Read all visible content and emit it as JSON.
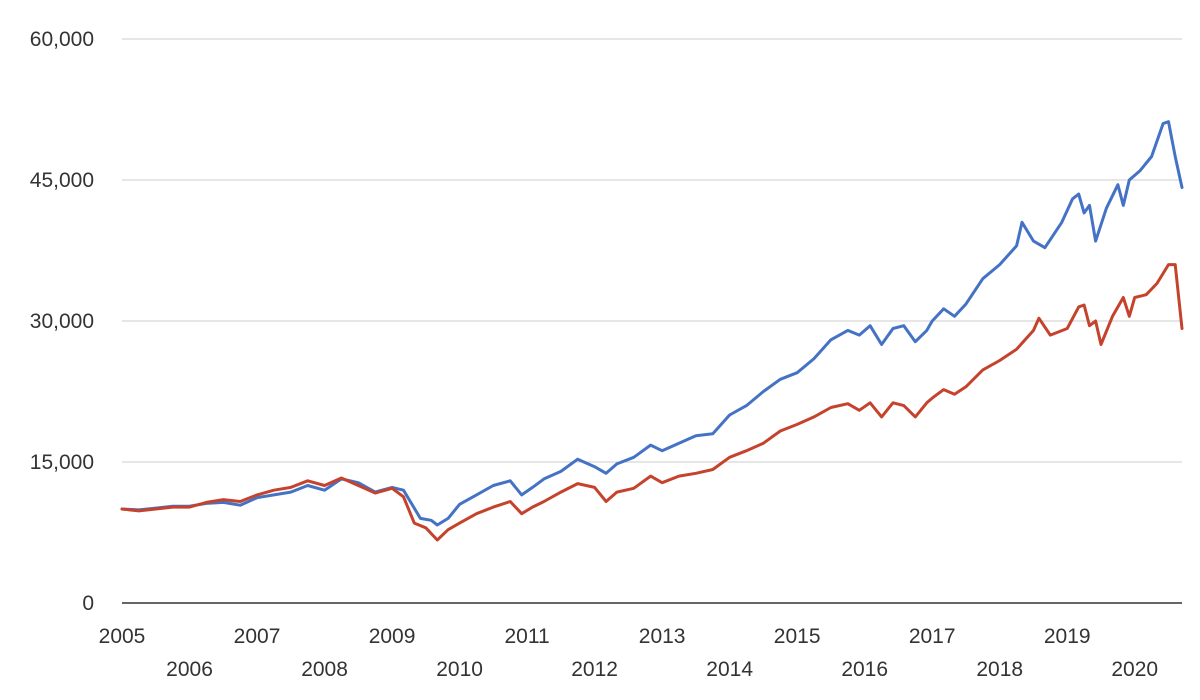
{
  "chart_data": {
    "type": "line",
    "title": "",
    "xlabel": "",
    "ylabel": "",
    "ylim": [
      0,
      60000
    ],
    "yticks": [
      0,
      15000,
      30000,
      45000,
      60000
    ],
    "ytick_labels": [
      "0",
      "15,000",
      "30,000",
      "45,000",
      "60,000"
    ],
    "xlim": [
      2005.0,
      2020.7
    ],
    "xticks": [
      2005,
      2006,
      2007,
      2008,
      2009,
      2010,
      2011,
      2012,
      2013,
      2014,
      2015,
      2016,
      2017,
      2018,
      2019,
      2020
    ],
    "xtick_labels": [
      "2005",
      "2006",
      "2007",
      "2008",
      "2009",
      "2010",
      "2011",
      "2012",
      "2013",
      "2014",
      "2015",
      "2016",
      "2017",
      "2018",
      "2019",
      "2020"
    ],
    "grid": true,
    "legend": "none",
    "series": [
      {
        "color": "#4472C4",
        "points": [
          [
            2005.0,
            10000
          ],
          [
            2005.25,
            9900
          ],
          [
            2005.5,
            10100
          ],
          [
            2005.75,
            10300
          ],
          [
            2006.0,
            10300
          ],
          [
            2006.25,
            10600
          ],
          [
            2006.5,
            10700
          ],
          [
            2006.75,
            10400
          ],
          [
            2007.0,
            11200
          ],
          [
            2007.25,
            11500
          ],
          [
            2007.5,
            11800
          ],
          [
            2007.75,
            12500
          ],
          [
            2008.0,
            12000
          ],
          [
            2008.25,
            13200
          ],
          [
            2008.5,
            12800
          ],
          [
            2008.75,
            11800
          ],
          [
            2009.0,
            12300
          ],
          [
            2009.17,
            12000
          ],
          [
            2009.42,
            9000
          ],
          [
            2009.58,
            8800
          ],
          [
            2009.67,
            8300
          ],
          [
            2009.83,
            9000
          ],
          [
            2010.0,
            10500
          ],
          [
            2010.25,
            11500
          ],
          [
            2010.5,
            12500
          ],
          [
            2010.75,
            13000
          ],
          [
            2010.92,
            11500
          ],
          [
            2011.08,
            12300
          ],
          [
            2011.25,
            13200
          ],
          [
            2011.5,
            14000
          ],
          [
            2011.75,
            15300
          ],
          [
            2012.0,
            14500
          ],
          [
            2012.17,
            13800
          ],
          [
            2012.33,
            14800
          ],
          [
            2012.58,
            15500
          ],
          [
            2012.83,
            16800
          ],
          [
            2013.0,
            16200
          ],
          [
            2013.25,
            17000
          ],
          [
            2013.5,
            17800
          ],
          [
            2013.75,
            18000
          ],
          [
            2014.0,
            20000
          ],
          [
            2014.25,
            21000
          ],
          [
            2014.5,
            22500
          ],
          [
            2014.75,
            23800
          ],
          [
            2015.0,
            24500
          ],
          [
            2015.25,
            26000
          ],
          [
            2015.5,
            28000
          ],
          [
            2015.75,
            29000
          ],
          [
            2015.92,
            28500
          ],
          [
            2016.08,
            29500
          ],
          [
            2016.25,
            27500
          ],
          [
            2016.42,
            29200
          ],
          [
            2016.58,
            29500
          ],
          [
            2016.75,
            27800
          ],
          [
            2016.92,
            29000
          ],
          [
            2017.0,
            30000
          ],
          [
            2017.17,
            31300
          ],
          [
            2017.33,
            30500
          ],
          [
            2017.5,
            31800
          ],
          [
            2017.75,
            34500
          ],
          [
            2018.0,
            36000
          ],
          [
            2018.25,
            38000
          ],
          [
            2018.33,
            40500
          ],
          [
            2018.5,
            38500
          ],
          [
            2018.67,
            37800
          ],
          [
            2018.92,
            40500
          ],
          [
            2019.08,
            43000
          ],
          [
            2019.17,
            43500
          ],
          [
            2019.25,
            41500
          ],
          [
            2019.33,
            42300
          ],
          [
            2019.42,
            38500
          ],
          [
            2019.58,
            42000
          ],
          [
            2019.75,
            44500
          ],
          [
            2019.83,
            42300
          ],
          [
            2019.92,
            45000
          ],
          [
            2020.08,
            46000
          ],
          [
            2020.25,
            47500
          ],
          [
            2020.42,
            51000
          ],
          [
            2020.5,
            51200
          ],
          [
            2020.6,
            47500
          ],
          [
            2020.7,
            44200
          ]
        ]
      },
      {
        "color": "#C5432C",
        "points": [
          [
            2005.0,
            10000
          ],
          [
            2005.25,
            9800
          ],
          [
            2005.5,
            10000
          ],
          [
            2005.75,
            10200
          ],
          [
            2006.0,
            10200
          ],
          [
            2006.25,
            10700
          ],
          [
            2006.5,
            11000
          ],
          [
            2006.75,
            10800
          ],
          [
            2007.0,
            11500
          ],
          [
            2007.25,
            12000
          ],
          [
            2007.5,
            12300
          ],
          [
            2007.75,
            13000
          ],
          [
            2008.0,
            12500
          ],
          [
            2008.25,
            13300
          ],
          [
            2008.5,
            12500
          ],
          [
            2008.75,
            11700
          ],
          [
            2009.0,
            12200
          ],
          [
            2009.17,
            11300
          ],
          [
            2009.33,
            8500
          ],
          [
            2009.5,
            8000
          ],
          [
            2009.67,
            6700
          ],
          [
            2009.83,
            7800
          ],
          [
            2010.0,
            8500
          ],
          [
            2010.25,
            9500
          ],
          [
            2010.5,
            10200
          ],
          [
            2010.75,
            10800
          ],
          [
            2010.92,
            9500
          ],
          [
            2011.08,
            10200
          ],
          [
            2011.25,
            10800
          ],
          [
            2011.5,
            11800
          ],
          [
            2011.75,
            12700
          ],
          [
            2012.0,
            12300
          ],
          [
            2012.17,
            10800
          ],
          [
            2012.33,
            11800
          ],
          [
            2012.58,
            12200
          ],
          [
            2012.83,
            13500
          ],
          [
            2013.0,
            12800
          ],
          [
            2013.25,
            13500
          ],
          [
            2013.5,
            13800
          ],
          [
            2013.75,
            14200
          ],
          [
            2014.0,
            15500
          ],
          [
            2014.25,
            16200
          ],
          [
            2014.5,
            17000
          ],
          [
            2014.75,
            18300
          ],
          [
            2015.0,
            19000
          ],
          [
            2015.25,
            19800
          ],
          [
            2015.5,
            20800
          ],
          [
            2015.75,
            21200
          ],
          [
            2015.92,
            20500
          ],
          [
            2016.08,
            21300
          ],
          [
            2016.25,
            19800
          ],
          [
            2016.42,
            21300
          ],
          [
            2016.58,
            21000
          ],
          [
            2016.75,
            19800
          ],
          [
            2016.92,
            21300
          ],
          [
            2017.0,
            21800
          ],
          [
            2017.17,
            22700
          ],
          [
            2017.33,
            22200
          ],
          [
            2017.5,
            23000
          ],
          [
            2017.75,
            24800
          ],
          [
            2018.0,
            25800
          ],
          [
            2018.25,
            27000
          ],
          [
            2018.5,
            29000
          ],
          [
            2018.58,
            30300
          ],
          [
            2018.75,
            28500
          ],
          [
            2019.0,
            29200
          ],
          [
            2019.17,
            31500
          ],
          [
            2019.25,
            31700
          ],
          [
            2019.33,
            29500
          ],
          [
            2019.42,
            30000
          ],
          [
            2019.5,
            27500
          ],
          [
            2019.67,
            30500
          ],
          [
            2019.83,
            32500
          ],
          [
            2019.92,
            30500
          ],
          [
            2020.0,
            32500
          ],
          [
            2020.17,
            32800
          ],
          [
            2020.33,
            34000
          ],
          [
            2020.5,
            36000
          ],
          [
            2020.6,
            36000
          ],
          [
            2020.7,
            29200
          ]
        ]
      }
    ]
  }
}
